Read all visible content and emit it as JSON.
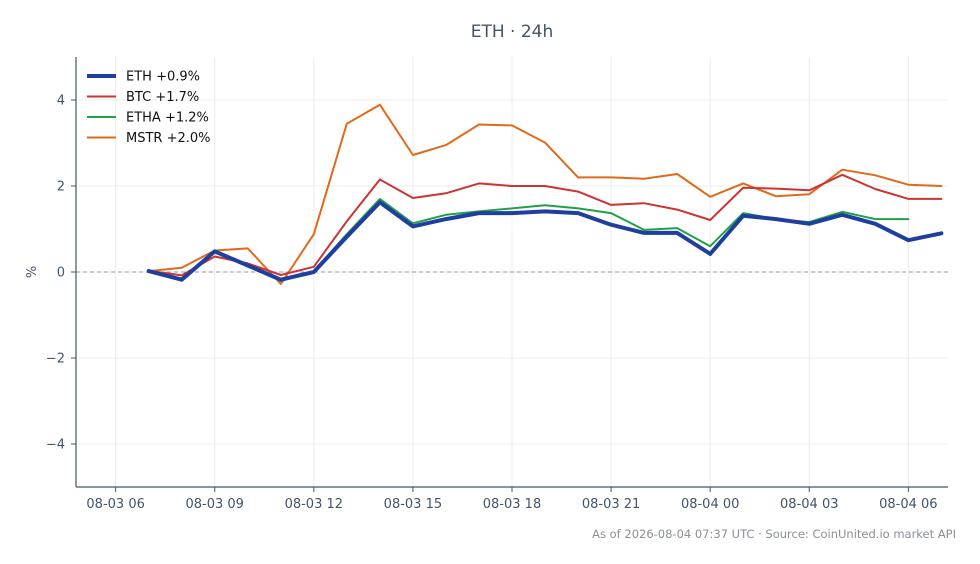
{
  "chart_data": {
    "type": "line",
    "title": "ETH · 24h",
    "xlabel": "",
    "ylabel": "%",
    "x_ticks": [
      "08-03 06",
      "08-03 09",
      "08-03 12",
      "08-03 15",
      "08-03 18",
      "08-03 21",
      "08-04 00",
      "08-04 03",
      "08-04 06"
    ],
    "y_ticks": [
      4,
      2,
      0,
      -2,
      -4
    ],
    "y_tick_labels": [
      "4",
      "2",
      "0",
      "−2",
      "−4"
    ],
    "xlim": [
      -1.2,
      25.2
    ],
    "ylim": [
      -5,
      5
    ],
    "grid": true,
    "zero_line": true,
    "legend_position": "top-left",
    "x_hours": [
      1,
      2,
      3,
      4,
      5,
      6,
      7,
      8,
      9,
      10,
      11,
      12,
      13,
      14,
      15,
      16,
      17,
      18,
      19,
      20,
      21,
      22,
      23,
      24,
      25
    ],
    "series": [
      {
        "name": "ETH +0.9%",
        "color": "#1f3fa0",
        "width": 4,
        "values": [
          0.02,
          -0.18,
          0.48,
          0.15,
          -0.18,
          0.0,
          0.82,
          1.62,
          1.06,
          1.23,
          1.37,
          1.37,
          1.41,
          1.37,
          1.1,
          0.91,
          0.91,
          0.42,
          1.31,
          1.23,
          1.12,
          1.33,
          1.12,
          0.74,
          0.9
        ]
      },
      {
        "name": "BTC +1.7%",
        "color": "#cc3333",
        "width": 2,
        "values": [
          0.03,
          -0.08,
          0.36,
          0.2,
          -0.07,
          0.12,
          1.18,
          2.15,
          1.72,
          1.83,
          2.06,
          2.0,
          2.0,
          1.87,
          1.56,
          1.6,
          1.45,
          1.21,
          1.96,
          1.94,
          1.9,
          2.26,
          1.93,
          1.7,
          1.7
        ]
      },
      {
        "name": "ETHA +1.2%",
        "color": "#22a048",
        "width": 2,
        "values": [
          0.03,
          -0.15,
          0.5,
          0.13,
          -0.21,
          0.02,
          0.88,
          1.7,
          1.13,
          1.33,
          1.41,
          1.48,
          1.55,
          1.48,
          1.37,
          0.98,
          1.02,
          0.6,
          1.37,
          1.23,
          1.16,
          1.4,
          1.23,
          1.23,
          null
        ]
      },
      {
        "name": "MSTR +2.0%",
        "color": "#e06a1b",
        "width": 2,
        "values": [
          0.02,
          0.1,
          0.5,
          0.55,
          -0.28,
          0.88,
          3.45,
          3.89,
          2.72,
          2.95,
          3.43,
          3.41,
          3.01,
          2.2,
          2.2,
          2.17,
          2.28,
          1.75,
          2.06,
          1.76,
          1.81,
          2.38,
          2.25,
          2.03,
          2.0
        ]
      }
    ]
  },
  "footer": "As of 2026-08-04 07:37 UTC · Source: CoinUnited.io market API"
}
